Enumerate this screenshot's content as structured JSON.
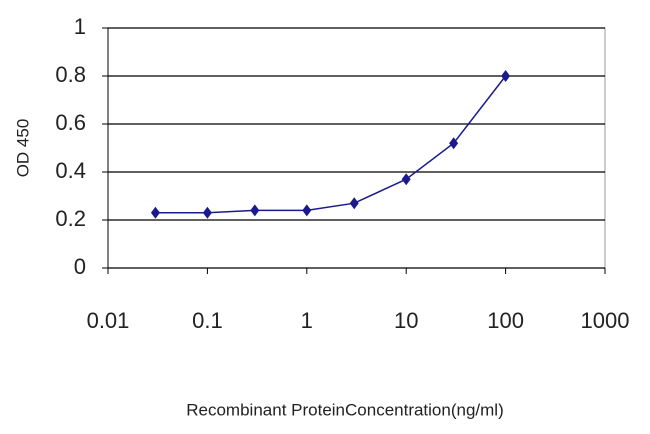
{
  "chart_data": {
    "type": "line",
    "x_label": "Recombinant ProteinConcentration(ng/ml)",
    "y_label": "OD 450",
    "x": [
      0.03,
      0.1,
      0.3,
      1,
      3,
      10,
      30,
      100
    ],
    "series": [
      {
        "color": "#1a1a8c",
        "values": [
          0.23,
          0.23,
          0.24,
          0.24,
          0.27,
          0.37,
          0.52,
          0.8
        ]
      }
    ],
    "xlim": [
      0.01,
      1000
    ],
    "xticks": [
      0.01,
      0.1,
      1,
      10,
      100,
      1000
    ],
    "log_x": true,
    "ylim": [
      0,
      1
    ],
    "yticks": [
      0,
      0.2,
      0.4,
      0.6,
      0.8,
      1
    ],
    "grid": true
  }
}
